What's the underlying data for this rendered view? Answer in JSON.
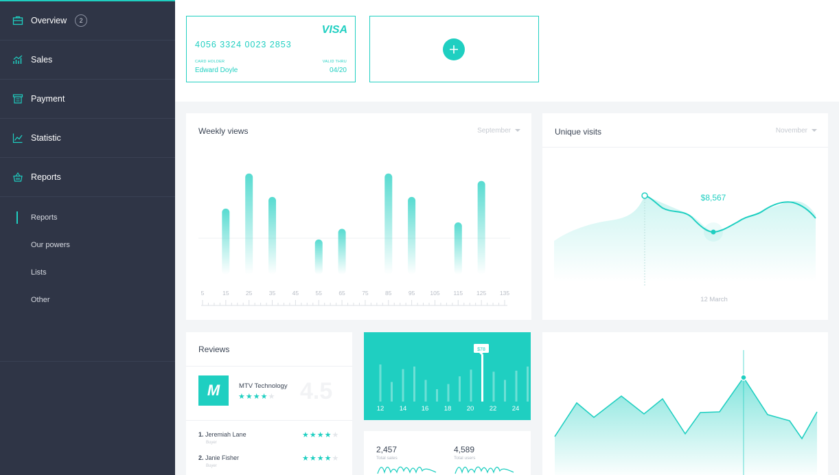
{
  "sidebar": {
    "items": [
      {
        "label": "Overview",
        "icon": "briefcase-icon",
        "badge": "2"
      },
      {
        "label": "Sales",
        "icon": "bar-chart-icon"
      },
      {
        "label": "Payment",
        "icon": "receipt-icon"
      },
      {
        "label": "Statistic",
        "icon": "line-chart-icon"
      },
      {
        "label": "Reports",
        "icon": "basket-icon"
      }
    ],
    "subitems": [
      "Reports",
      "Our powers",
      "Lists",
      "Other"
    ],
    "active_subitem": "Reports"
  },
  "cards": {
    "visa": {
      "brand": "VISA",
      "number": "4056 3324 0023 2853",
      "holder_label": "CARD HOLDER",
      "holder": "Edward Doyle",
      "valid_label": "VALID THRU",
      "valid": "04/20"
    },
    "add": {
      "icon": "plus-icon"
    }
  },
  "weekly_views": {
    "title": "Weekly views",
    "selector": "September"
  },
  "unique_visits": {
    "title": "Unique visits",
    "selector": "November",
    "value_label": "$8,567",
    "date_label": "12 March"
  },
  "reviews": {
    "title": "Reviews",
    "company": "MTV Technology",
    "company_logo": "M",
    "company_stars": 4,
    "rating": "4.5",
    "people": [
      {
        "rank": "1.",
        "name": "Jeremiah Lane",
        "role": "Buyer",
        "stars": 4
      },
      {
        "rank": "2.",
        "name": "Janie Fisher",
        "role": "Buyer",
        "stars": 4
      }
    ]
  },
  "sales_bars": {
    "tooltip": "$78",
    "axis": [
      "12",
      "14",
      "16",
      "18",
      "20",
      "22",
      "24"
    ]
  },
  "stats": [
    {
      "value": "2,457",
      "label": "Total sales"
    },
    {
      "value": "4,589",
      "label": "Total users"
    }
  ],
  "colors": {
    "accent": "#1fcfc1",
    "sidebar": "#2f3546",
    "text": "#3a4454"
  },
  "chart_data": [
    {
      "type": "bar",
      "title": "Weekly views",
      "x_ticks": [
        5,
        15,
        25,
        35,
        45,
        55,
        65,
        75,
        85,
        95,
        105,
        115,
        125,
        135
      ],
      "x": [
        15,
        25,
        35,
        55,
        65,
        85,
        95,
        115,
        125
      ],
      "values": [
        0.62,
        0.95,
        0.73,
        0.33,
        0.43,
        0.95,
        0.73,
        0.49,
        0.88
      ],
      "grid": false
    },
    {
      "type": "area",
      "title": "Unique visits",
      "annotation": "$8,567",
      "x_label_marker": "12 March",
      "grid": false
    },
    {
      "type": "bar",
      "categories": [
        "12",
        "14",
        "16",
        "18",
        "20",
        "22",
        "24"
      ],
      "highlight_label": "$78"
    },
    {
      "type": "area",
      "grid": false
    }
  ]
}
